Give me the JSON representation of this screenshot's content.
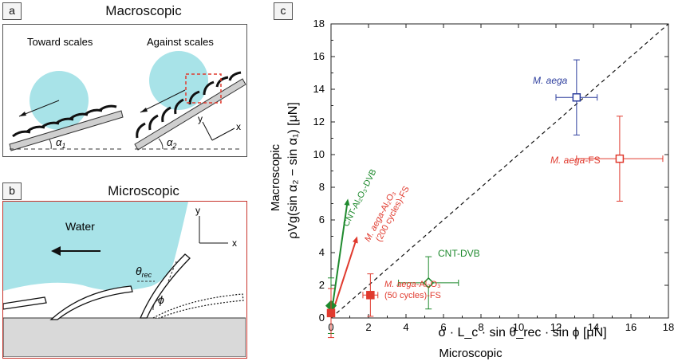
{
  "panels": {
    "a": {
      "tag": "a",
      "title": "Macroscopic",
      "left_label": "Toward scales",
      "right_label": "Against scales",
      "angle_left": "α",
      "angle_left_sub": "1",
      "angle_right": "α",
      "angle_right_sub": "2",
      "axis_x": "x",
      "axis_y": "y"
    },
    "b": {
      "tag": "b",
      "title": "Microscopic",
      "water_label": "Water",
      "theta": "θ",
      "theta_sub": "rec",
      "phi": "ϕ",
      "axis_x": "x",
      "axis_y": "y"
    },
    "c": {
      "tag": "c"
    }
  },
  "colors": {
    "water": "#a8e3e8",
    "blue": "#2e3f9e",
    "red": "#e03a2e",
    "green": "#1f8a2e",
    "frame_red": "#c8332b"
  },
  "chart_data": {
    "type": "scatter",
    "xlabel": "σ · L_c · sin θ_rec · sin ϕ  [μN]",
    "xlabel_word": "Microscopic",
    "ylabel": "ρVg(sin α₂ − sin α₁)  [μN]",
    "ylabel_word": "Macroscopic",
    "xlim": [
      0,
      18
    ],
    "ylim": [
      0,
      18
    ],
    "xticks": [
      "0",
      "2",
      "4",
      "6",
      "8",
      "10",
      "12",
      "14",
      "16",
      "18"
    ],
    "yticks": [
      "0",
      "2",
      "4",
      "6",
      "8",
      "10",
      "12",
      "14",
      "16",
      "18"
    ],
    "reference_line": "y = x (dashed)",
    "points": [
      {
        "label": "M. aega",
        "x": 13.1,
        "y": 13.5,
        "xerr": 1.1,
        "yerr": 2.3,
        "color": "blue",
        "marker": "open-square"
      },
      {
        "label": "M. aega-FS",
        "x": 15.4,
        "y": 9.75,
        "xerr": 2.3,
        "yerr": 2.6,
        "color": "red",
        "marker": "open-square"
      },
      {
        "label": "CNT-DVB",
        "x": 5.2,
        "y": 2.15,
        "xerr": 1.6,
        "yerr": 1.6,
        "color": "green",
        "marker": "open-diamond"
      },
      {
        "label": "M. aega-Al₂O₃ (50 cycles)-FS",
        "x": 2.1,
        "y": 1.4,
        "xerr": 0.4,
        "yerr": 1.3,
        "color": "red",
        "marker": "filled-square"
      },
      {
        "label": "CNT-Al₂O₃-DVB",
        "x": 0.0,
        "y": 0.75,
        "xerr": 0.0,
        "yerr": 1.7,
        "color": "green",
        "marker": "filled-diamond"
      },
      {
        "label": "M. aega-Al₂O₃ (200 cycles)-FS",
        "x": 0.0,
        "y": 0.3,
        "xerr": 0.0,
        "yerr": 1.5,
        "color": "red",
        "marker": "filled-square"
      }
    ],
    "arrows": [
      {
        "from": [
          0.1,
          0.9
        ],
        "to": [
          0.9,
          7.3
        ],
        "color": "green",
        "label": "CNT-Al₂O₃-DVB"
      },
      {
        "from": [
          0.1,
          0.4
        ],
        "to": [
          1.4,
          5.0
        ],
        "color": "red",
        "label": "M. aega-Al₂O₃ (200 cycles)-FS"
      }
    ],
    "annotations": {
      "m_aega": "M. aega",
      "m_aega_fs_italic": "M. aega",
      "m_aega_fs_rest": "-FS",
      "cnt_dvb": "CNT-DVB",
      "cnt_al": "CNT-Al₂O₃-DVB",
      "m200_italic": "M. aega",
      "m200_rest": "-Al₂O₃",
      "m200_line2": "(200 cycles)-FS",
      "m50_italic": "M. aega",
      "m50_rest": "-Al₂O₃",
      "m50_line2": "(50 cycles)-FS"
    }
  }
}
